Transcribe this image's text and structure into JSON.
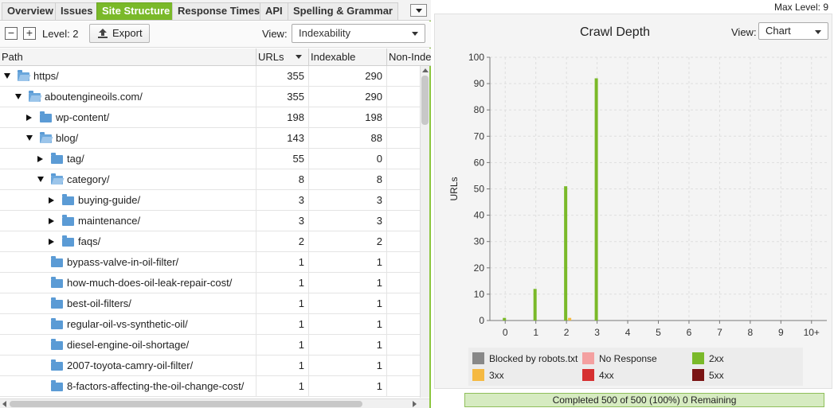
{
  "tabs": [
    {
      "label": "Overview",
      "active": false
    },
    {
      "label": "Issues",
      "active": false
    },
    {
      "label": "Site Structure",
      "active": true
    },
    {
      "label": "Response Times",
      "active": false
    },
    {
      "label": "API",
      "active": false
    },
    {
      "label": "Spelling & Grammar",
      "active": false
    }
  ],
  "toolbar": {
    "collapse_icon": "minus-square-icon",
    "expand_icon": "plus-square-icon",
    "level_label": "Level: 2",
    "export_label": "Export",
    "export_icon": "export-icon",
    "view_label": "View:",
    "view_value": "Indexability"
  },
  "table": {
    "columns": [
      "Path",
      "URLs",
      "Indexable",
      "Non-Inde"
    ],
    "sorted_column": "URLs",
    "rows": [
      {
        "path": "https/",
        "urls": "355",
        "indexable": "290",
        "toggle": "open",
        "folder": "open"
      },
      {
        "path": "aboutengineoils.com/",
        "urls": "355",
        "indexable": "290",
        "toggle": "open",
        "folder": "open"
      },
      {
        "path": "wp-content/",
        "urls": "198",
        "indexable": "198",
        "toggle": "closed",
        "folder": "closed"
      },
      {
        "path": "blog/",
        "urls": "143",
        "indexable": "88",
        "toggle": "open",
        "folder": "open"
      },
      {
        "path": "tag/",
        "urls": "55",
        "indexable": "0",
        "toggle": "closed",
        "folder": "closed"
      },
      {
        "path": "category/",
        "urls": "8",
        "indexable": "8",
        "toggle": "open",
        "folder": "open"
      },
      {
        "path": "buying-guide/",
        "urls": "3",
        "indexable": "3",
        "toggle": "closed",
        "folder": "closed"
      },
      {
        "path": "maintenance/",
        "urls": "3",
        "indexable": "3",
        "toggle": "closed",
        "folder": "closed"
      },
      {
        "path": "faqs/",
        "urls": "2",
        "indexable": "2",
        "toggle": "closed",
        "folder": "closed"
      },
      {
        "path": "bypass-valve-in-oil-filter/",
        "urls": "1",
        "indexable": "1",
        "toggle": "none",
        "folder": "closed"
      },
      {
        "path": "how-much-does-oil-leak-repair-cost/",
        "urls": "1",
        "indexable": "1",
        "toggle": "none",
        "folder": "closed"
      },
      {
        "path": "best-oil-filters/",
        "urls": "1",
        "indexable": "1",
        "toggle": "none",
        "folder": "closed"
      },
      {
        "path": "regular-oil-vs-synthetic-oil/",
        "urls": "1",
        "indexable": "1",
        "toggle": "none",
        "folder": "closed"
      },
      {
        "path": "diesel-engine-oil-shortage/",
        "urls": "1",
        "indexable": "1",
        "toggle": "none",
        "folder": "closed"
      },
      {
        "path": "2007-toyota-camry-oil-filter/",
        "urls": "1",
        "indexable": "1",
        "toggle": "none",
        "folder": "closed"
      },
      {
        "path": "8-factors-affecting-the-oil-change-cost/",
        "urls": "1",
        "indexable": "1",
        "toggle": "none",
        "folder": "closed"
      }
    ]
  },
  "right_panel": {
    "max_level_label": "Max Level: 9",
    "view_label": "View:",
    "view_value": "Chart",
    "progress_text": "Completed 500 of 500 (100%) 0 Remaining"
  },
  "chart_data": {
    "type": "bar",
    "title": "Crawl Depth",
    "xlabel": "",
    "ylabel": "URLs",
    "categories": [
      "0",
      "1",
      "2",
      "3",
      "4",
      "5",
      "6",
      "7",
      "8",
      "9",
      "10+"
    ],
    "ylim": [
      0,
      100
    ],
    "yticks": [
      0,
      10,
      20,
      30,
      40,
      50,
      60,
      70,
      80,
      90,
      100
    ],
    "grid": true,
    "legend_position": "bottom",
    "series": [
      {
        "name": "Blocked by robots.txt",
        "color": "#888888",
        "values": [
          0,
          0,
          0,
          0,
          0,
          0,
          0,
          0,
          0,
          0,
          0
        ]
      },
      {
        "name": "No Response",
        "color": "#f4a0a0",
        "values": [
          0,
          0,
          0,
          0,
          0,
          0,
          0,
          0,
          0,
          0,
          0
        ]
      },
      {
        "name": "2xx",
        "color": "#7ab929",
        "values": [
          1,
          12,
          51,
          92,
          0,
          0,
          0,
          0,
          0,
          0,
          0
        ]
      },
      {
        "name": "3xx",
        "color": "#f5b942",
        "values": [
          0,
          0,
          1,
          0,
          0,
          0,
          0,
          0,
          0,
          0,
          0
        ]
      },
      {
        "name": "4xx",
        "color": "#d63031",
        "values": [
          0,
          0,
          0,
          0,
          0,
          0,
          0,
          0,
          0,
          0,
          0
        ]
      },
      {
        "name": "5xx",
        "color": "#7a1414",
        "values": [
          0,
          0,
          0,
          0,
          0,
          0,
          0,
          0,
          0,
          0,
          0
        ]
      }
    ]
  }
}
